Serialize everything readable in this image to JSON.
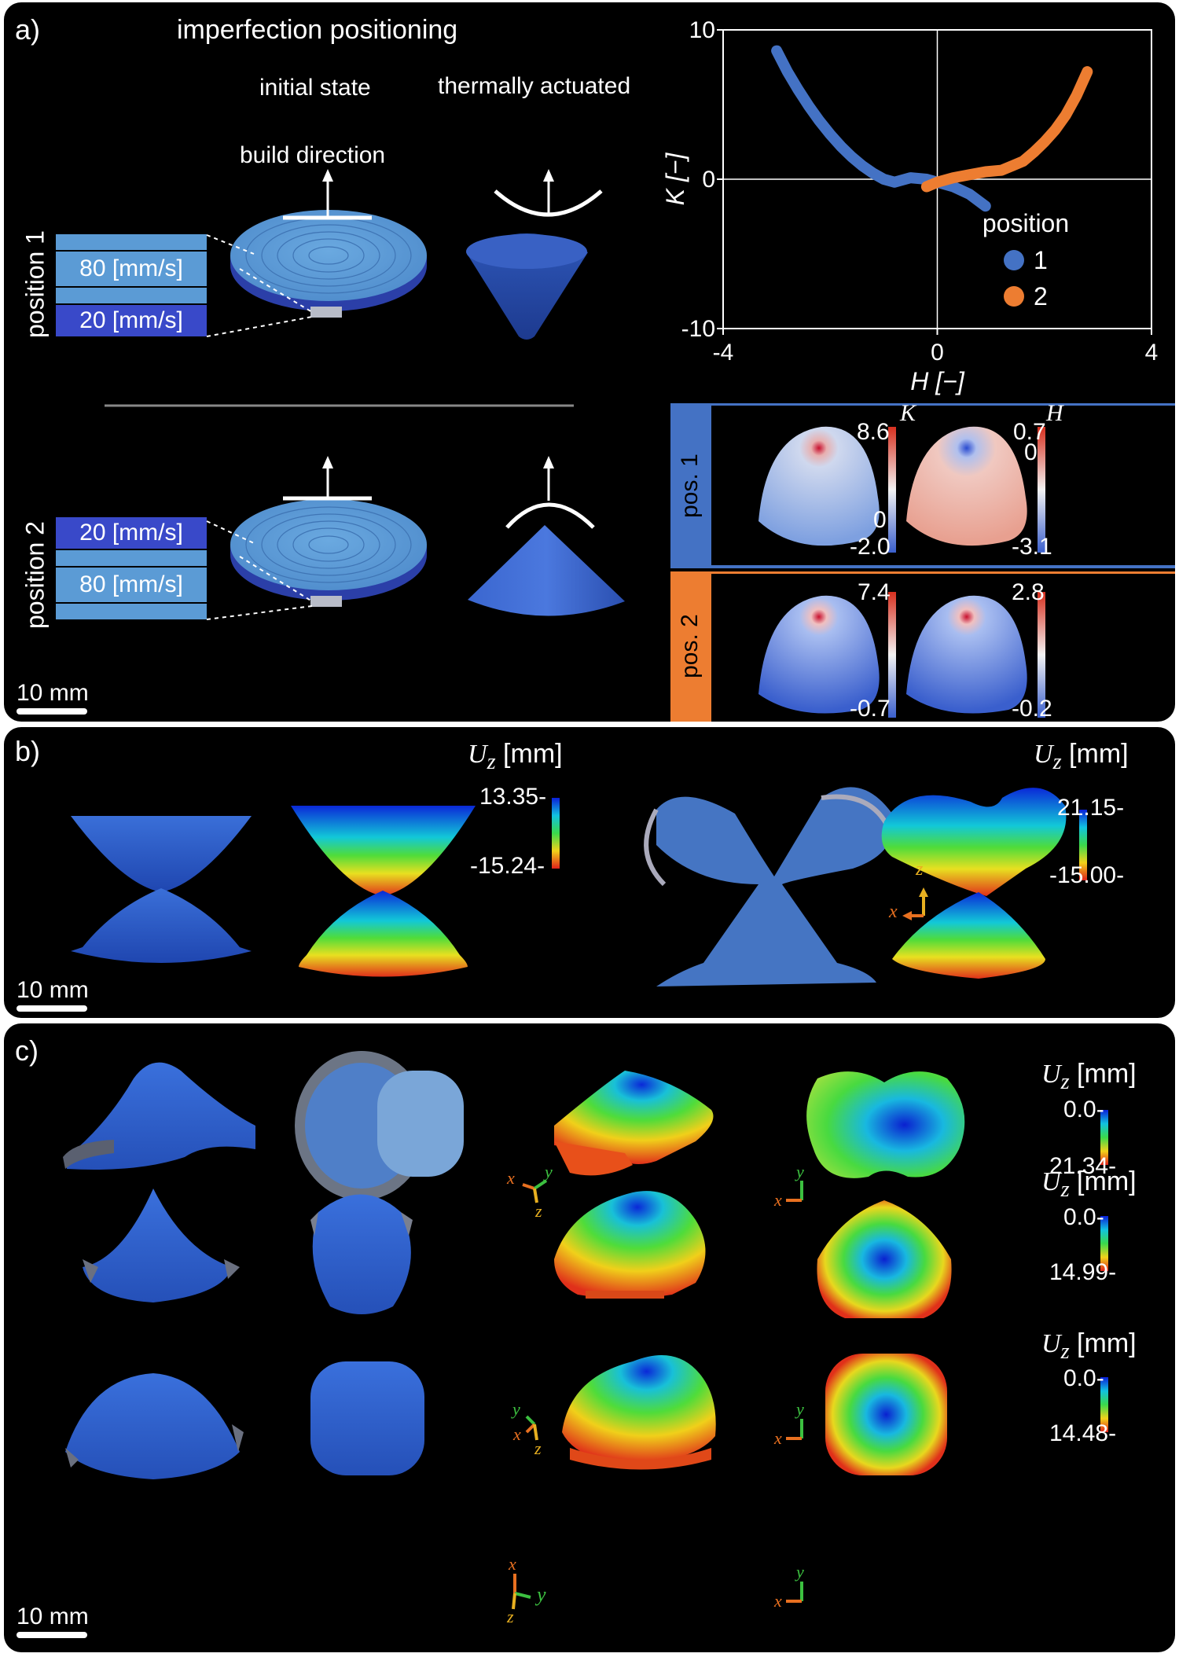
{
  "panel_a": {
    "label": "a)",
    "title": "imperfection positioning",
    "col_initial": "initial state",
    "col_actuated": "thermally actuated",
    "build_direction": "build direction",
    "pos1_label": "position 1",
    "pos2_label": "position 2",
    "pos1_top_speed": "80 [mm/s]",
    "pos1_bottom_speed": "20 [mm/s]",
    "pos2_top_speed": "20 [mm/s]",
    "pos2_bottom_speed": "80 [mm/s]",
    "scale": "10 mm",
    "maps": {
      "pos1_tag": "pos. 1",
      "pos2_tag": "pos. 2",
      "K_label": "K",
      "H_label": "H",
      "pos1_K_max": "8.6",
      "pos1_K_zero": "0",
      "pos1_K_min": "-2.0",
      "pos1_H_max": "0.7",
      "pos1_H_zero": "0",
      "pos1_H_min": "-3.1",
      "pos2_K_max": "7.4",
      "pos2_K_min": "-0.7",
      "pos2_H_max": "2.8",
      "pos2_H_min": "-0.2"
    }
  },
  "panel_b": {
    "label": "b)",
    "scale": "10 mm",
    "uz_unit": "[mm]",
    "left_max": "13.35-",
    "left_min": "-15.24-",
    "right_max": "21.15-",
    "right_min": "-15.00-",
    "axis_x": "x",
    "axis_z": "z"
  },
  "panel_c": {
    "label": "c)",
    "scale": "10 mm",
    "uz_unit": "[mm]",
    "row1_top": "0.0-",
    "row1_bottom": "21.34-",
    "row2_top": "0.0-",
    "row2_bottom": "14.99-",
    "row3_top": "0.0-",
    "row3_bottom": "14.48-",
    "axis_x": "x",
    "axis_y": "y",
    "axis_z": "z"
  },
  "colors": {
    "pos1": "#4472c4",
    "pos2": "#ed7d31",
    "layer_light": "#5b9bd5",
    "layer_dark": "#3949c9"
  },
  "chart_data": {
    "type": "scatter",
    "xlabel": "H [−]",
    "ylabel": "K [−]",
    "xlim": [
      -4,
      4
    ],
    "ylim": [
      -10,
      10
    ],
    "xticks": [
      "-4",
      "0",
      "4"
    ],
    "yticks": [
      "10",
      "0",
      "-10"
    ],
    "legend_title": "position",
    "legend_placement": "bottom-right",
    "series": [
      {
        "name": "1",
        "color": "#4472c4",
        "points": [
          [
            -3.0,
            8.6
          ],
          [
            -2.8,
            7.2
          ],
          [
            -2.6,
            6.0
          ],
          [
            -2.4,
            4.9
          ],
          [
            -2.2,
            3.9
          ],
          [
            -2.0,
            3.0
          ],
          [
            -1.8,
            2.2
          ],
          [
            -1.6,
            1.5
          ],
          [
            -1.4,
            0.9
          ],
          [
            -1.2,
            0.4
          ],
          [
            -1.0,
            0.0
          ],
          [
            -0.8,
            -0.2
          ],
          [
            -0.5,
            0.1
          ],
          [
            -0.2,
            0.0
          ],
          [
            0.0,
            -0.2
          ],
          [
            0.3,
            -0.5
          ],
          [
            0.6,
            -1.0
          ],
          [
            0.9,
            -1.8
          ]
        ]
      },
      {
        "name": "2",
        "color": "#ed7d31",
        "points": [
          [
            -0.2,
            -0.5
          ],
          [
            0.0,
            -0.2
          ],
          [
            0.3,
            0.1
          ],
          [
            0.6,
            0.3
          ],
          [
            0.9,
            0.5
          ],
          [
            1.2,
            0.6
          ],
          [
            1.4,
            0.9
          ],
          [
            1.6,
            1.2
          ],
          [
            1.8,
            1.8
          ],
          [
            2.0,
            2.5
          ],
          [
            2.2,
            3.3
          ],
          [
            2.4,
            4.3
          ],
          [
            2.6,
            5.6
          ],
          [
            2.8,
            7.2
          ]
        ]
      }
    ]
  }
}
